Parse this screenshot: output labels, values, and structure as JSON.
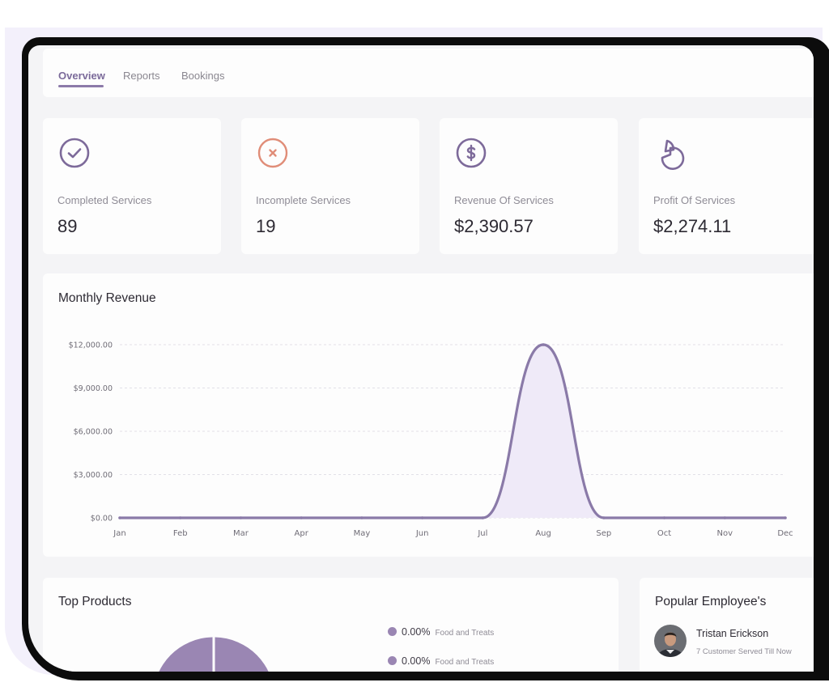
{
  "tabs": [
    {
      "label": "Overview",
      "active": true
    },
    {
      "label": "Reports",
      "active": false
    },
    {
      "label": "Bookings",
      "active": false
    }
  ],
  "stats": [
    {
      "label": "Completed Services",
      "value": "89",
      "icon": "check-circle-icon",
      "color": "#7d6a9a"
    },
    {
      "label": "Incomplete Services",
      "value": "19",
      "icon": "x-circle-icon",
      "color": "#e08d78"
    },
    {
      "label": "Revenue Of Services",
      "value": "$2,390.57",
      "icon": "dollar-circle-icon",
      "color": "#7d6a9a"
    },
    {
      "label": "Profit Of Services",
      "value": "$2,274.11",
      "icon": "pie-chart-icon",
      "color": "#7d6a9a"
    }
  ],
  "revenue": {
    "title": "Monthly Revenue"
  },
  "chart_data": {
    "type": "area",
    "title": "Monthly Revenue",
    "categories": [
      "Jan",
      "Feb",
      "Mar",
      "Apr",
      "May",
      "Jun",
      "Jul",
      "Aug",
      "Sep",
      "Oct",
      "Nov",
      "Dec"
    ],
    "values": [
      0,
      0,
      0,
      0,
      0,
      0,
      0,
      12000,
      0,
      0,
      0,
      0
    ],
    "yticks": [
      "$0.00",
      "$3,000.00",
      "$6,000.00",
      "$9,000.00",
      "$12,000.00"
    ],
    "ylim": [
      0,
      12000
    ],
    "grid": true,
    "line_color": "#8a7aa8",
    "fill_color": "#efeaf8"
  },
  "top_products": {
    "title": "Top Products",
    "legend": [
      {
        "percent": "0.00%",
        "category": "Food and Treats"
      },
      {
        "percent": "0.00%",
        "category": "Food and Treats"
      }
    ],
    "donut_color": "#9a86b3"
  },
  "popular_employees": {
    "title": "Popular Employee's",
    "items": [
      {
        "name": "Tristan Erickson",
        "subtitle": "7 Customer Served Till Now"
      }
    ]
  }
}
